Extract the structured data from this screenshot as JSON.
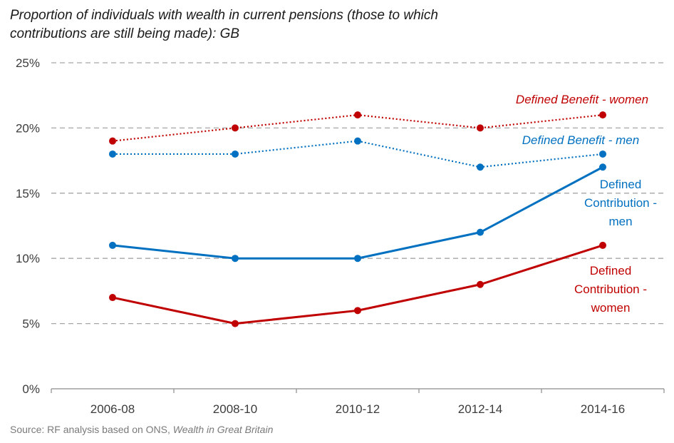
{
  "chart_data": {
    "type": "line",
    "title": "Proportion of individuals with wealth in current pensions (those to which contributions are still being made): GB",
    "title_lines": [
      "Proportion of individuals with wealth in current pensions (those to which",
      "contributions are still being made): GB"
    ],
    "categories": [
      "2006-08",
      "2008-10",
      "2010-12",
      "2012-14",
      "2014-16"
    ],
    "ylim": [
      0,
      25
    ],
    "yticks": [
      0,
      5,
      10,
      15,
      20,
      25
    ],
    "ytick_labels": [
      "0%",
      "5%",
      "10%",
      "15%",
      "20%",
      "25%"
    ],
    "grid": true,
    "legend": "inline labels at right end of lines",
    "series": [
      {
        "name": "Defined Benefit - women",
        "label_lines": [
          "Defined Benefit - women"
        ],
        "label_italic": true,
        "values": [
          19,
          20,
          21,
          20,
          21
        ],
        "color": "#c00000",
        "style": "dotted"
      },
      {
        "name": "Defined Benefit - men",
        "label_lines": [
          "Defined Benefit - men"
        ],
        "label_italic": true,
        "values": [
          18,
          18,
          19,
          17,
          18
        ],
        "color": "#0070c0",
        "style": "dotted"
      },
      {
        "name": "Defined Contribution - men",
        "label_lines": [
          "Defined",
          "Contribution -",
          "men"
        ],
        "label_italic": false,
        "values": [
          11,
          10,
          10,
          12,
          17
        ],
        "color": "#0070c0",
        "style": "solid"
      },
      {
        "name": "Defined Contribution - women",
        "label_lines": [
          "Defined",
          "Contribution -",
          "women"
        ],
        "label_italic": false,
        "values": [
          7,
          5,
          6,
          8,
          11
        ],
        "color": "#c00000",
        "style": "solid"
      }
    ],
    "source_prefix": "Source: RF analysis based on ONS, ",
    "source_italic": "Wealth in Great Britain"
  }
}
